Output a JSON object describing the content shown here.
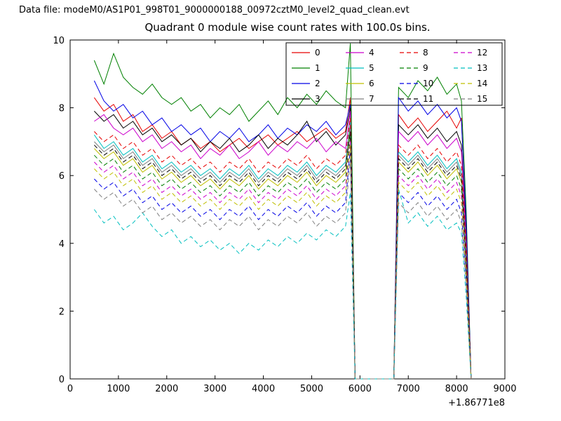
{
  "figure": {
    "data_file_text": "Data file: modeM0/AS1P01_998T01_9000000188_00972cztM0_level2_quad_clean.evt"
  },
  "chart_data": {
    "type": "line",
    "title": "Quadrant 0 module wise count rates with 100.0s bins.",
    "xlabel": "",
    "ylabel": "",
    "xlim": [
      0,
      9000
    ],
    "ylim": [
      0,
      10
    ],
    "xticks": [
      0,
      1000,
      2000,
      3000,
      4000,
      5000,
      6000,
      7000,
      8000,
      9000
    ],
    "yticks": [
      0,
      2,
      4,
      6,
      8,
      10
    ],
    "x_offset_label": "+1.86771e8",
    "grid": false,
    "legend": {
      "position": "upper center-right",
      "columns": 4
    },
    "x": [
      500,
      700,
      900,
      1100,
      1300,
      1500,
      1700,
      1900,
      2100,
      2300,
      2500,
      2700,
      2900,
      3100,
      3300,
      3500,
      3700,
      3900,
      4100,
      4300,
      4500,
      4700,
      4900,
      5100,
      5300,
      5500,
      5700,
      5800,
      5900,
      6100,
      6300,
      6500,
      6700,
      6800,
      7000,
      7200,
      7400,
      7600,
      7800,
      8000,
      8100,
      8200,
      8300
    ],
    "series": [
      {
        "name": "0",
        "color": "#e60000",
        "style": "solid",
        "values": [
          8.3,
          7.9,
          8.1,
          7.6,
          7.8,
          7.3,
          7.5,
          7.1,
          7.3,
          6.9,
          7.1,
          6.8,
          7.0,
          6.7,
          6.9,
          7.1,
          6.8,
          7.0,
          7.2,
          6.9,
          7.1,
          7.3,
          7.0,
          7.2,
          7.4,
          7.1,
          7.3,
          8.3,
          0,
          0,
          0,
          0,
          0,
          7.8,
          7.4,
          7.7,
          7.3,
          7.6,
          7.9,
          7.4,
          7.7,
          4.4,
          0
        ]
      },
      {
        "name": "1",
        "color": "#008000",
        "style": "solid",
        "values": [
          9.4,
          8.7,
          9.6,
          8.9,
          8.6,
          8.4,
          8.7,
          8.3,
          8.1,
          8.3,
          7.9,
          8.1,
          7.7,
          8.0,
          7.8,
          8.1,
          7.6,
          7.9,
          8.2,
          7.8,
          8.3,
          8.0,
          8.4,
          8.1,
          8.5,
          8.2,
          8.0,
          9.9,
          0,
          0,
          0,
          0,
          0,
          8.6,
          8.3,
          8.8,
          8.5,
          8.9,
          8.4,
          8.7,
          8.2,
          4.9,
          0
        ]
      },
      {
        "name": "2",
        "color": "#0000e6",
        "style": "solid",
        "values": [
          8.8,
          8.2,
          7.9,
          8.1,
          7.7,
          7.9,
          7.5,
          7.7,
          7.3,
          7.5,
          7.2,
          7.4,
          7.0,
          7.3,
          7.1,
          7.4,
          7.0,
          7.2,
          7.5,
          7.1,
          7.4,
          7.2,
          7.5,
          7.3,
          7.6,
          7.2,
          7.5,
          8.1,
          0,
          0,
          0,
          0,
          0,
          8.3,
          7.9,
          8.2,
          7.8,
          8.1,
          7.7,
          8.0,
          7.6,
          4.6,
          0
        ]
      },
      {
        "name": "3",
        "color": "#000000",
        "style": "solid",
        "values": [
          7.9,
          7.6,
          7.8,
          7.4,
          7.6,
          7.2,
          7.4,
          7.0,
          7.2,
          6.9,
          7.1,
          6.7,
          7.0,
          6.8,
          7.1,
          6.7,
          6.9,
          7.2,
          6.8,
          7.1,
          6.9,
          7.2,
          7.6,
          7.0,
          7.3,
          6.9,
          7.2,
          8.0,
          0,
          0,
          0,
          0,
          0,
          7.5,
          7.2,
          7.5,
          7.1,
          7.4,
          7.0,
          7.3,
          6.9,
          4.2,
          0
        ]
      },
      {
        "name": "4",
        "color": "#cc00cc",
        "style": "solid",
        "values": [
          7.6,
          7.8,
          7.4,
          7.2,
          7.4,
          7.0,
          7.2,
          6.8,
          7.0,
          6.7,
          6.9,
          6.5,
          6.8,
          6.6,
          6.9,
          6.5,
          6.7,
          7.0,
          6.6,
          6.9,
          6.7,
          7.0,
          6.8,
          7.1,
          6.7,
          7.0,
          6.8,
          7.9,
          0,
          0,
          0,
          0,
          0,
          7.3,
          7.0,
          7.3,
          6.9,
          7.2,
          6.8,
          7.1,
          6.7,
          4.0,
          0
        ]
      },
      {
        "name": "5",
        "color": "#00bfbf",
        "style": "solid",
        "values": [
          7.2,
          6.8,
          7.0,
          6.6,
          6.8,
          6.4,
          6.6,
          6.2,
          6.4,
          6.1,
          6.3,
          6.0,
          6.2,
          5.9,
          6.2,
          6.0,
          6.3,
          5.9,
          6.2,
          6.0,
          6.3,
          6.1,
          6.4,
          6.0,
          6.3,
          6.1,
          6.4,
          7.6,
          0,
          0,
          0,
          0,
          0,
          6.7,
          6.4,
          6.7,
          6.3,
          6.6,
          6.2,
          6.5,
          6.1,
          3.7,
          0
        ]
      },
      {
        "name": "6",
        "color": "#bfbf00",
        "style": "solid",
        "values": [
          6.8,
          6.5,
          6.7,
          6.3,
          6.5,
          6.1,
          6.3,
          5.9,
          6.1,
          5.8,
          6.0,
          5.7,
          5.9,
          5.6,
          5.9,
          5.7,
          6.0,
          5.6,
          5.9,
          5.7,
          6.0,
          5.8,
          6.1,
          5.7,
          6.0,
          5.8,
          6.1,
          7.4,
          0,
          0,
          0,
          0,
          0,
          6.4,
          6.1,
          6.4,
          6.0,
          6.3,
          5.9,
          6.2,
          5.8,
          3.5,
          0
        ]
      },
      {
        "name": "7",
        "color": "#7f7f7f",
        "style": "solid",
        "values": [
          7.0,
          6.7,
          6.9,
          6.5,
          6.7,
          6.3,
          6.5,
          6.1,
          6.3,
          6.0,
          6.2,
          5.9,
          6.1,
          5.8,
          6.1,
          5.9,
          6.2,
          5.8,
          6.1,
          5.9,
          6.2,
          6.0,
          6.3,
          5.9,
          6.2,
          6.0,
          6.3,
          7.5,
          0,
          0,
          0,
          0,
          0,
          6.6,
          6.3,
          6.6,
          6.2,
          6.5,
          6.1,
          6.4,
          6.0,
          3.6,
          0
        ]
      },
      {
        "name": "8",
        "color": "#e60000",
        "style": "dashed",
        "values": [
          7.3,
          7.0,
          7.2,
          6.8,
          7.0,
          6.6,
          6.8,
          6.4,
          6.6,
          6.3,
          6.5,
          6.2,
          6.4,
          6.1,
          6.4,
          6.2,
          6.5,
          6.1,
          6.4,
          6.2,
          6.5,
          6.3,
          6.6,
          6.2,
          6.5,
          6.3,
          6.6,
          7.7,
          0,
          0,
          0,
          0,
          0,
          6.9,
          6.6,
          6.9,
          6.5,
          6.8,
          6.4,
          6.7,
          6.3,
          3.8,
          0
        ]
      },
      {
        "name": "9",
        "color": "#008000",
        "style": "dashed",
        "values": [
          6.6,
          6.3,
          6.5,
          6.1,
          6.3,
          5.9,
          6.1,
          5.7,
          5.9,
          5.6,
          5.8,
          5.5,
          5.7,
          5.4,
          5.7,
          5.5,
          5.8,
          5.4,
          5.7,
          5.5,
          5.8,
          5.6,
          5.9,
          5.5,
          5.8,
          5.6,
          5.9,
          7.2,
          0,
          0,
          0,
          0,
          0,
          6.2,
          5.9,
          6.2,
          5.8,
          6.1,
          5.7,
          6.0,
          5.6,
          3.3,
          0
        ]
      },
      {
        "name": "10",
        "color": "#0000e6",
        "style": "dashed",
        "values": [
          5.9,
          5.6,
          5.8,
          5.4,
          5.6,
          5.2,
          5.4,
          5.0,
          5.2,
          4.9,
          5.1,
          4.8,
          5.0,
          4.7,
          5.0,
          4.8,
          5.1,
          4.7,
          5.0,
          4.8,
          5.1,
          4.9,
          5.2,
          4.8,
          5.1,
          4.9,
          5.2,
          6.8,
          0,
          0,
          0,
          0,
          0,
          5.5,
          5.2,
          5.5,
          5.1,
          5.4,
          5.0,
          5.3,
          4.9,
          2.9,
          0
        ]
      },
      {
        "name": "11",
        "color": "#000000",
        "style": "dashed",
        "values": [
          6.9,
          6.6,
          6.8,
          6.4,
          6.6,
          6.2,
          6.4,
          6.0,
          6.2,
          5.9,
          6.1,
          5.8,
          6.0,
          5.7,
          6.0,
          5.8,
          6.1,
          5.7,
          6.0,
          5.8,
          6.1,
          5.9,
          6.2,
          5.8,
          6.1,
          5.9,
          6.2,
          7.3,
          0,
          0,
          0,
          0,
          0,
          6.5,
          6.2,
          6.5,
          6.1,
          6.4,
          6.0,
          6.3,
          5.9,
          3.4,
          0
        ]
      },
      {
        "name": "12",
        "color": "#cc00cc",
        "style": "dashed",
        "values": [
          6.4,
          6.1,
          6.3,
          5.9,
          6.1,
          5.7,
          5.9,
          5.5,
          5.7,
          5.4,
          5.6,
          5.3,
          5.5,
          5.2,
          5.5,
          5.3,
          5.6,
          5.2,
          5.5,
          5.3,
          5.6,
          5.4,
          5.7,
          5.3,
          5.6,
          5.4,
          5.7,
          7.0,
          0,
          0,
          0,
          0,
          0,
          6.0,
          5.7,
          6.0,
          5.6,
          5.9,
          5.5,
          5.8,
          5.4,
          3.1,
          0
        ]
      },
      {
        "name": "13",
        "color": "#00bfbf",
        "style": "dashed",
        "values": [
          5.0,
          4.6,
          4.8,
          4.4,
          4.6,
          4.9,
          4.5,
          4.2,
          4.4,
          4.0,
          4.2,
          3.9,
          4.1,
          3.8,
          4.0,
          3.7,
          4.0,
          3.8,
          4.1,
          3.9,
          4.2,
          4.0,
          4.3,
          4.1,
          4.4,
          4.2,
          4.5,
          5.5,
          0,
          0,
          0,
          0,
          0,
          5.6,
          4.6,
          4.9,
          4.5,
          4.8,
          4.4,
          4.6,
          4.3,
          2.4,
          0
        ]
      },
      {
        "name": "14",
        "color": "#bfbf00",
        "style": "dashed",
        "values": [
          6.2,
          5.9,
          6.1,
          5.7,
          5.9,
          5.5,
          5.7,
          5.3,
          5.5,
          5.2,
          5.4,
          5.1,
          5.3,
          5.0,
          5.3,
          5.1,
          5.4,
          5.0,
          5.3,
          5.1,
          5.4,
          5.2,
          5.5,
          5.1,
          5.4,
          5.2,
          5.5,
          6.9,
          0,
          0,
          0,
          0,
          0,
          5.8,
          5.5,
          5.8,
          5.4,
          5.7,
          5.3,
          5.6,
          5.2,
          3.0,
          0
        ]
      },
      {
        "name": "15",
        "color": "#7f7f7f",
        "style": "dashed",
        "values": [
          5.6,
          5.3,
          5.5,
          5.1,
          5.3,
          4.9,
          5.1,
          4.7,
          4.9,
          4.6,
          4.8,
          4.5,
          4.7,
          4.4,
          4.7,
          4.5,
          4.8,
          4.4,
          4.7,
          4.5,
          4.8,
          4.6,
          4.9,
          4.5,
          4.8,
          4.6,
          4.9,
          6.5,
          0,
          0,
          0,
          0,
          0,
          5.2,
          4.9,
          5.2,
          4.8,
          5.1,
          4.7,
          5.0,
          4.6,
          2.7,
          0
        ]
      }
    ]
  }
}
